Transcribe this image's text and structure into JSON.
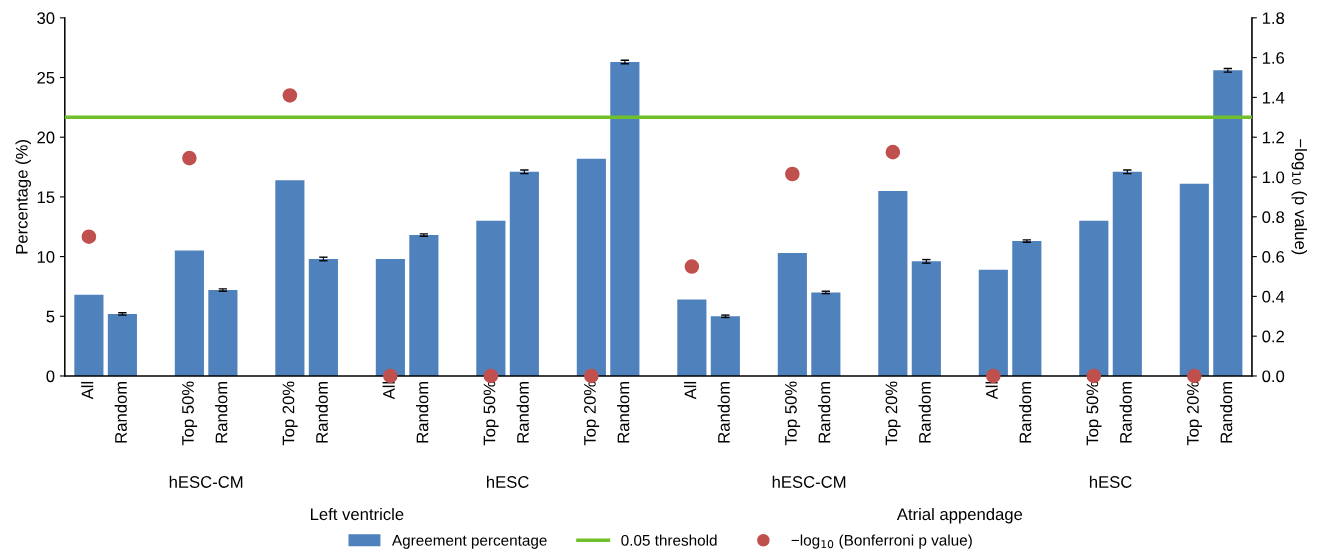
{
  "chart_data": {
    "type": "bar",
    "ylabel": "Percentage (%)",
    "y2label": "−log$_{10}$ (p value)",
    "categories": [
      "All",
      "Random",
      null,
      "Top 50%",
      "Random",
      null,
      "Top 20%",
      "Random",
      null,
      "All",
      "Random",
      null,
      "Top 50%",
      "Random",
      null,
      "Top 20%",
      "Random",
      null,
      "All",
      "Random",
      null,
      "Top 50%",
      "Random",
      null,
      "Top 20%",
      "Random",
      null,
      "All",
      "Random",
      null,
      "Top 50%",
      "Random",
      null,
      "Top 20%",
      "Random"
    ],
    "series": [
      {
        "name": "Agreement percentage",
        "color": "#4f81bd",
        "values": [
          6.8,
          5.2,
          null,
          10.5,
          7.2,
          null,
          16.4,
          9.8,
          null,
          9.8,
          11.8,
          null,
          13.0,
          17.1,
          null,
          18.2,
          26.3,
          null,
          6.4,
          5.0,
          null,
          10.3,
          7.0,
          null,
          15.5,
          9.6,
          null,
          8.9,
          11.3,
          null,
          13.0,
          17.1,
          null,
          16.1,
          25.6
        ],
        "errors": [
          null,
          0.1,
          null,
          null,
          0.1,
          null,
          null,
          0.15,
          null,
          null,
          0.1,
          null,
          null,
          0.15,
          null,
          null,
          0.15,
          null,
          null,
          0.1,
          null,
          null,
          0.1,
          null,
          null,
          0.15,
          null,
          null,
          0.1,
          null,
          null,
          0.15,
          null,
          null,
          0.15
        ]
      },
      {
        "name": "−log$_{10}$ (Bonferroni p value)",
        "type": "scatter",
        "axis": "y2",
        "color": "#c0504d",
        "values": [
          0.7,
          null,
          null,
          1.095,
          null,
          null,
          1.41,
          null,
          null,
          0.0,
          null,
          null,
          0.0,
          null,
          null,
          0.0,
          null,
          null,
          0.55,
          null,
          null,
          1.015,
          null,
          null,
          1.125,
          null,
          null,
          0.0,
          null,
          null,
          0.0,
          null,
          null,
          0.0,
          null
        ]
      }
    ],
    "ylim": [
      0,
      30
    ],
    "yticks": [
      0,
      5,
      10,
      15,
      20,
      25,
      30
    ],
    "y2lim": [
      0,
      1.8
    ],
    "y2ticks": [
      {
        "value": 0,
        "label": "0.0"
      },
      {
        "value": 0.2,
        "label": "0.2"
      },
      {
        "value": 0.4,
        "label": "0.4"
      },
      {
        "value": 0.6,
        "label": "0.6"
      },
      {
        "value": 0.8,
        "label": "0.8"
      },
      {
        "value": 1.0,
        "label": "1.0"
      },
      {
        "value": 1.2,
        "label": "1.2"
      },
      {
        "value": 1.4,
        "label": "1.4"
      },
      {
        "value": 1.6,
        "label": "1.6"
      },
      {
        "value": 1.8,
        "label": "1.8"
      }
    ],
    "ref_lines": [
      {
        "axis": "y2",
        "value": 1.3,
        "label": "0.05 threshold",
        "color": "#70bf2b"
      }
    ],
    "annotations": [
      "hESC-CM",
      "hESC",
      "hESC-CM",
      "hESC",
      "Left ventricle",
      "Atrial appendage"
    ],
    "marker": "circle",
    "legend": "bottom",
    "grid": false
  }
}
